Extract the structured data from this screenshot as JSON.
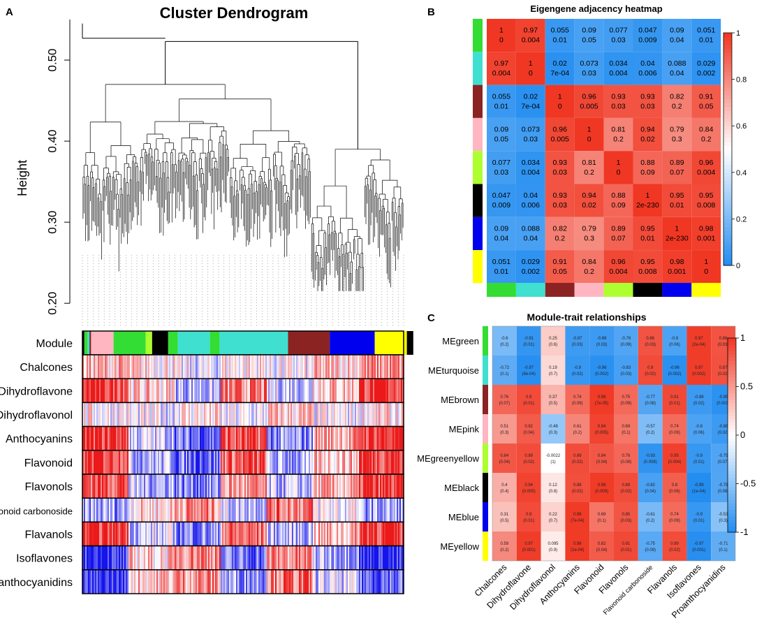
{
  "chart_data": [
    {
      "id": "A",
      "type": "dendrogram",
      "panel_label": "A",
      "title": "Cluster Dendrogram",
      "ylabel": "Height",
      "ylim": [
        0.195,
        0.55
      ],
      "yticks": [
        0.2,
        0.3,
        0.4,
        0.5
      ],
      "ytick_labels": [
        "0.20",
        "0.30",
        "0.40",
        "0.50"
      ],
      "main_merge_height": 0.523,
      "module_row_label": "Module",
      "module_bands": [
        {
          "color": "#000000",
          "frac": 0.006
        },
        {
          "color": "#33dd33",
          "frac": 0.01
        },
        {
          "color": "#3fe0d0",
          "frac": 0.006
        },
        {
          "color": "#8b2323",
          "frac": 0.005
        },
        {
          "color": "#ffb6c1",
          "frac": 0.07
        },
        {
          "color": "#33dd33",
          "frac": 0.1
        },
        {
          "color": "#adff2f",
          "frac": 0.02
        },
        {
          "color": "#000000",
          "frac": 0.05
        },
        {
          "color": "#33dd33",
          "frac": 0.03
        },
        {
          "color": "#3fe0d0",
          "frac": 0.1
        },
        {
          "color": "#33dd33",
          "frac": 0.03
        },
        {
          "color": "#3fe0d0",
          "frac": 0.213
        },
        {
          "color": "#8b2323",
          "frac": 0.13
        },
        {
          "color": "#0000ee",
          "frac": 0.14
        },
        {
          "color": "#ffff00",
          "frac": 0.1
        },
        {
          "color": "#000000",
          "frac": 0.02
        }
      ],
      "trait_rows": [
        "Chalcones",
        "Dihydroflavone",
        "Dihydroflavonol",
        "Anthocyanins",
        "Flavonoid",
        "Flavonols",
        "Flavonoid carbonoside",
        "Flavanols",
        "Isoflavones",
        "Proanthocyanidins"
      ],
      "trait_blocks": [
        [
          0.3,
          0.15,
          -0.15,
          0.1,
          -0.05,
          0.25,
          0.45
        ],
        [
          0.9,
          0.2,
          -0.3,
          0.5,
          -0.2,
          0.3,
          0.9
        ],
        [
          0.05,
          -0.1,
          0.1,
          -0.1,
          0.2,
          -0.05,
          0.1
        ],
        [
          0.9,
          -0.2,
          -0.6,
          0.7,
          -0.5,
          0.4,
          0.9
        ],
        [
          0.9,
          -0.3,
          -0.6,
          0.7,
          -0.4,
          0.3,
          0.9
        ],
        [
          0.8,
          -0.3,
          -0.5,
          0.4,
          -0.3,
          0.3,
          0.8
        ],
        [
          -0.4,
          0.2,
          0.5,
          -0.2,
          0.6,
          0.0,
          -0.4
        ],
        [
          0.9,
          -0.2,
          -0.5,
          0.6,
          -0.3,
          0.3,
          0.9
        ],
        [
          -0.9,
          0.2,
          0.6,
          -0.6,
          0.5,
          -0.3,
          -0.95
        ],
        [
          -0.9,
          0.3,
          0.5,
          -0.4,
          0.6,
          -0.2,
          -0.6
        ]
      ]
    },
    {
      "id": "B",
      "type": "heatmap",
      "panel_label": "B",
      "title": "Eigengene adjacency heatmap",
      "modules": [
        "green",
        "turquoise",
        "brown",
        "pink",
        "greenyellow",
        "black",
        "blue",
        "yellow"
      ],
      "module_colors": [
        "#33dd33",
        "#3fe0d0",
        "#8b2323",
        "#ffb6c1",
        "#adff2f",
        "#000000",
        "#0000ee",
        "#ffff00"
      ],
      "values": [
        [
          1,
          0.97,
          0.055,
          0.09,
          0.077,
          0.047,
          0.09,
          0.051
        ],
        [
          0.97,
          1,
          0.02,
          0.073,
          0.034,
          0.04,
          0.088,
          0.029
        ],
        [
          0.055,
          0.02,
          1,
          0.96,
          0.93,
          0.93,
          0.82,
          0.91
        ],
        [
          0.09,
          0.073,
          0.96,
          1,
          0.81,
          0.94,
          0.79,
          0.84
        ],
        [
          0.077,
          0.034,
          0.93,
          0.81,
          1,
          0.88,
          0.89,
          0.96
        ],
        [
          0.047,
          0.04,
          0.93,
          0.94,
          0.88,
          1,
          0.95,
          0.95
        ],
        [
          0.09,
          0.088,
          0.82,
          0.79,
          0.89,
          0.95,
          1,
          0.98
        ],
        [
          0.051,
          0.029,
          0.91,
          0.84,
          0.96,
          0.95,
          0.98,
          1
        ]
      ],
      "cell_labels": [
        [
          "1",
          "0.97",
          "0.055",
          "0.09",
          "0.077",
          "0.047",
          "0.09",
          "0.051"
        ],
        [
          "0.97",
          "1",
          "0.02",
          "0.073",
          "0.034",
          "0.04",
          "0.088",
          "0.029"
        ],
        [
          "0.055",
          "0.02",
          "1",
          "0.96",
          "0.93",
          "0.93",
          "0.82",
          "0.91"
        ],
        [
          "0.09",
          "0.073",
          "0.96",
          "1",
          "0.81",
          "0.94",
          "0.79",
          "0.84"
        ],
        [
          "0.077",
          "0.034",
          "0.93",
          "0.81",
          "1",
          "0.88",
          "0.89",
          "0.96"
        ],
        [
          "0.047",
          "0.04",
          "0.93",
          "0.94",
          "0.88",
          "1",
          "0.95",
          "0.95"
        ],
        [
          "0.09",
          "0.088",
          "0.82",
          "0.79",
          "0.89",
          "0.95",
          "1",
          "0.98"
        ],
        [
          "0.051",
          "0.029",
          "0.91",
          "0.84",
          "0.96",
          "0.95",
          "0.98",
          "1"
        ]
      ],
      "pvalues": [
        [
          "0",
          "0.004",
          "0.01",
          "0.05",
          "0.03",
          "0.009",
          "0.04",
          "0.01"
        ],
        [
          "0.004",
          "0",
          "7e-04",
          "0.03",
          "0.004",
          "0.006",
          "0.04",
          "0.002"
        ],
        [
          "0.01",
          "7e-04",
          "0",
          "0.005",
          "0.03",
          "0.03",
          "0.2",
          "0.05"
        ],
        [
          "0.05",
          "0.03",
          "0.005",
          "0",
          "0.2",
          "0.02",
          "0.3",
          "0.2"
        ],
        [
          "0.03",
          "0.004",
          "0.03",
          "0.2",
          "0",
          "0.09",
          "0.07",
          "0.004"
        ],
        [
          "0.009",
          "0.006",
          "0.03",
          "0.02",
          "0.09",
          "2e-230",
          "0.01",
          "0.008"
        ],
        [
          "0.04",
          "0.04",
          "0.2",
          "0.3",
          "0.07",
          "0.01",
          "2e-230",
          "0.001"
        ],
        [
          "0.01",
          "0.002",
          "0.05",
          "0.2",
          "0.004",
          "0.008",
          "0.001",
          "0"
        ]
      ],
      "colorbar_range": [
        0,
        1
      ],
      "colorbar_ticks": [
        "0",
        "0.2",
        "0.4",
        "0.6",
        "0.8",
        "1"
      ]
    },
    {
      "id": "C",
      "type": "heatmap",
      "panel_label": "C",
      "title": "Module-trait relationships",
      "rows": [
        "MEgreen",
        "MEturquoise",
        "MEbrown",
        "MEpink",
        "MEgreenyellow",
        "MEblack",
        "MEblue",
        "MEyellow"
      ],
      "row_colors": [
        "#33dd33",
        "#3fe0d0",
        "#8b2323",
        "#ffb6c1",
        "#adff2f",
        "#000000",
        "#0000ee",
        "#ffff00"
      ],
      "columns": [
        "Chalcones",
        "Dihydroflavone",
        "Dihydroflavonol",
        "Anthocyanins",
        "Flavonoid",
        "Flavonols",
        "Flavonoid carbonoside",
        "Flavanols",
        "Isoflavones",
        "Proanthocyanidins"
      ],
      "values": [
        [
          -0.6,
          -0.91,
          0.25,
          -0.87,
          -0.88,
          -0.78,
          0.86,
          -0.8,
          0.97,
          0.86
        ],
        [
          -0.72,
          -0.97,
          0.19,
          -0.9,
          -0.96,
          -0.83,
          0.9,
          -0.96,
          0.97,
          0.87
        ],
        [
          0.76,
          0.9,
          0.37,
          0.74,
          0.98,
          0.75,
          -0.77,
          0.91,
          -0.88,
          -0.95
        ],
        [
          0.51,
          0.82,
          -0.48,
          0.61,
          0.94,
          0.69,
          -0.57,
          0.74,
          -0.8,
          -0.88
        ],
        [
          0.84,
          0.89,
          -0.0022,
          0.89,
          0.84,
          0.76,
          -0.93,
          0.95,
          -0.9,
          -0.79
        ],
        [
          0.4,
          0.94,
          0.12,
          0.88,
          0.98,
          0.89,
          -0.82,
          0.8,
          -0.99,
          -0.78
        ],
        [
          0.31,
          0.9,
          0.22,
          0.98,
          0.69,
          0.85,
          -0.61,
          0.74,
          -0.9,
          -0.53
        ],
        [
          0.59,
          0.97,
          0.095,
          0.98,
          0.82,
          0.91,
          -0.75,
          0.89,
          -0.97,
          -0.71
        ]
      ],
      "value_labels": [
        [
          "-0.6",
          "-0.91",
          "0.25",
          "-0.87",
          "-0.88",
          "-0.78",
          "0.86",
          "-0.8",
          "0.97",
          "0.86"
        ],
        [
          "-0.72",
          "-0.97",
          "0.19",
          "-0.9",
          "-0.96",
          "-0.83",
          "0.9",
          "-0.96",
          "0.97",
          "0.87"
        ],
        [
          "0.76",
          "0.9",
          "0.37",
          "0.74",
          "0.98",
          "0.75",
          "-0.77",
          "0.91",
          "-0.88",
          "-0.95"
        ],
        [
          "0.51",
          "0.82",
          "-0.48",
          "0.61",
          "0.94",
          "0.69",
          "-0.57",
          "0.74",
          "-0.8",
          "-0.88"
        ],
        [
          "0.84",
          "0.89",
          "-0.0022",
          "0.89",
          "0.84",
          "0.76",
          "-0.93",
          "0.95",
          "-0.9",
          "-0.79"
        ],
        [
          "0.4",
          "0.94",
          "0.12",
          "0.88",
          "0.98",
          "0.89",
          "-0.82",
          "0.8",
          "-0.99",
          "-0.78"
        ],
        [
          "0.31",
          "0.9",
          "0.22",
          "0.98",
          "0.69",
          "0.85",
          "-0.61",
          "0.74",
          "-0.9",
          "-0.53"
        ],
        [
          "0.59",
          "0.97",
          "0.095",
          "0.98",
          "0.82",
          "0.91",
          "-0.75",
          "0.89",
          "-0.97",
          "-0.71"
        ]
      ],
      "pvalues": [
        [
          "(0.2)",
          "(0.01)",
          "(0.6)",
          "(0.03)",
          "(0.03)",
          "(0.09)",
          "(0.03)",
          "(0.06)",
          "(2e-04)",
          "(0.03)"
        ],
        [
          "(0.1)",
          "(9e-04)",
          "(0.7)",
          "(0.02)",
          "(0.002)",
          "(0.03)",
          "(0.02)",
          "(0.002)",
          "(0.002)",
          "(0.02)"
        ],
        [
          "(0.07)",
          "(0.01)",
          "(0.5)",
          "(0.09)",
          "(7e-05)",
          "(0.09)",
          "(0.08)",
          "(0.01)",
          "(0.02)",
          "(0.003)"
        ],
        [
          "(0.3)",
          "(0.04)",
          "(0.3)",
          "(0.2)",
          "(0.005)",
          "(0.1)",
          "(0.2)",
          "(0.09)",
          "(0.06)",
          "(0.02)"
        ],
        [
          "(0.04)",
          "(0.02)",
          "(1)",
          "(0.02)",
          "(0.04)",
          "(0.08)",
          "(0.008)",
          "(0.004)",
          "(0.01)",
          "(0.07)"
        ],
        [
          "(0.4)",
          "(0.005)",
          "(0.8)",
          "(0.02)",
          "(0.009)",
          "(0.02)",
          "(0.04)",
          "(0.06)",
          "(1e-04)",
          "(0.06)"
        ],
        [
          "(0.5)",
          "(0.01)",
          "(0.7)",
          "(7e-04)",
          "(0.1)",
          "(0.03)",
          "(0.2)",
          "(0.09)",
          "(0.01)",
          "(0.3)"
        ],
        [
          "(0.2)",
          "(0.001)",
          "(0.9)",
          "(1e-04)",
          "(0.04)",
          "(0.01)",
          "(0.09)",
          "(0.02)",
          "(0.001)",
          "(0.1)"
        ]
      ],
      "colorbar_range": [
        -1,
        1
      ],
      "colorbar_ticks": [
        "-1",
        "-0.5",
        "0",
        "0.5",
        "1"
      ]
    }
  ]
}
